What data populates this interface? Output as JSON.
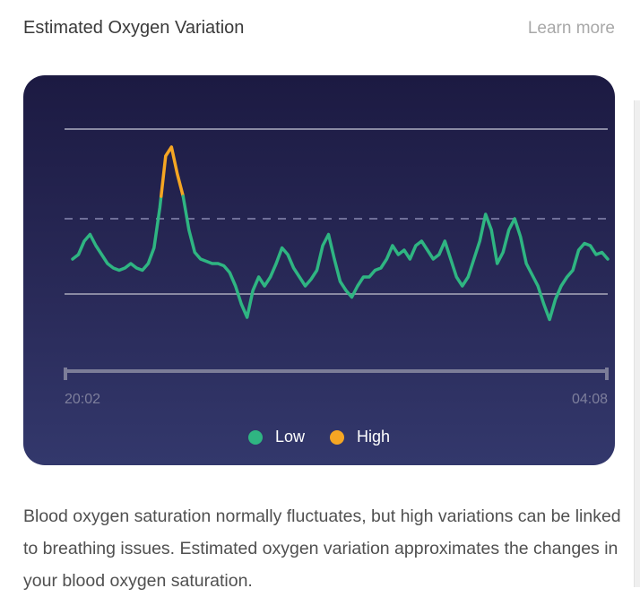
{
  "header": {
    "title": "Estimated Oxygen Variation",
    "learn_more": "Learn more"
  },
  "chart_data": {
    "type": "line",
    "x_start": "20:02",
    "x_end": "04:08",
    "ylim": [
      0,
      100
    ],
    "reference_lines": {
      "top": 100,
      "dashed": 70,
      "baseline": 40
    },
    "high_threshold": 70,
    "colors": {
      "low": "#2fb582",
      "high": "#f5a623"
    },
    "values": [
      42,
      44,
      50,
      53,
      48,
      44,
      40,
      38,
      37,
      38,
      40,
      38,
      37,
      40,
      47,
      65,
      88,
      92,
      80,
      70,
      55,
      45,
      42,
      41,
      40,
      40,
      39,
      36,
      30,
      22,
      16,
      28,
      34,
      30,
      34,
      40,
      47,
      44,
      38,
      34,
      30,
      33,
      37,
      48,
      53,
      42,
      32,
      28,
      25,
      30,
      34,
      34,
      37,
      38,
      42,
      48,
      44,
      46,
      42,
      48,
      50,
      46,
      42,
      44,
      50,
      42,
      34,
      30,
      34,
      42,
      50,
      62,
      55,
      40,
      45,
      55,
      60,
      52,
      40,
      35,
      30,
      22,
      15,
      24,
      30,
      34,
      37,
      46,
      49,
      48,
      44,
      45,
      42
    ],
    "legend": [
      "Low",
      "High"
    ]
  },
  "description": "Blood oxygen saturation normally fluctuates, but high variations can be linked to breathing issues. Estimated oxygen variation approximates the changes in your blood oxygen saturation."
}
